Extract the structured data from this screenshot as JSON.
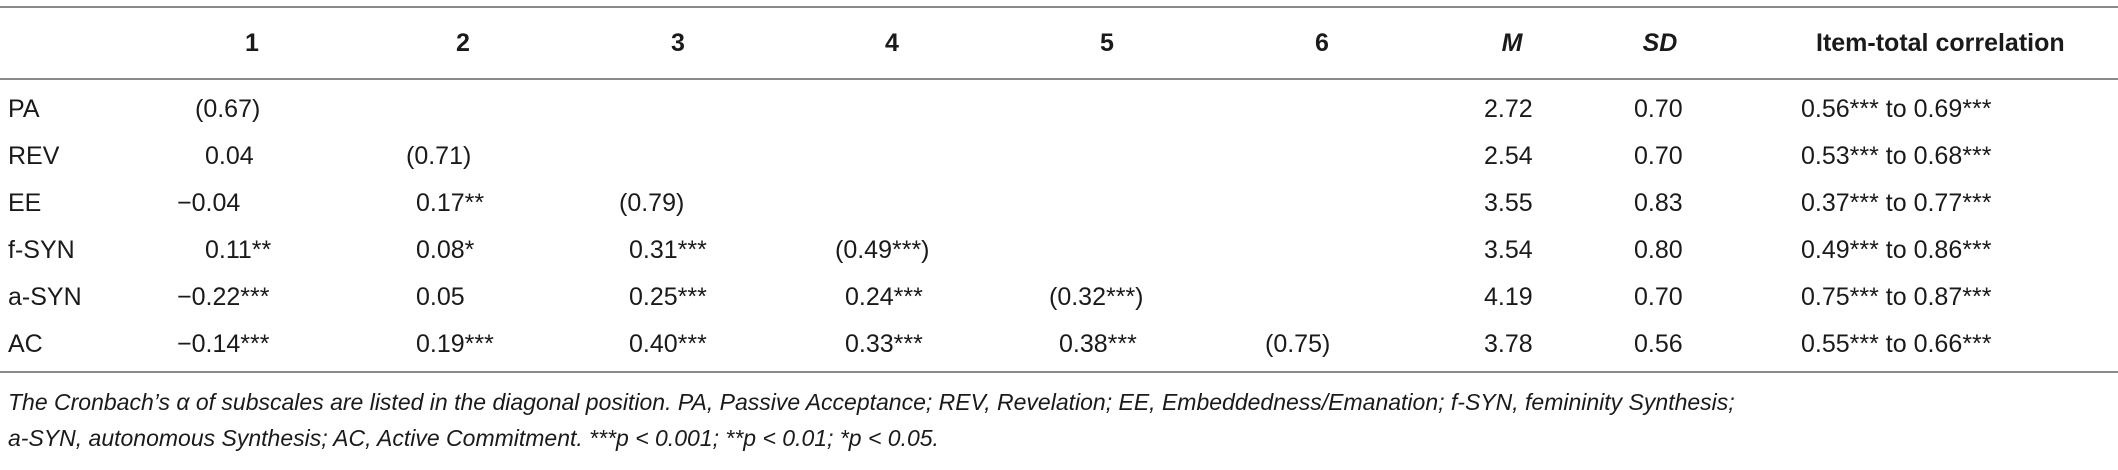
{
  "table": {
    "headers": {
      "label": "",
      "c1": "1",
      "c2": "2",
      "c3": "3",
      "c4": "4",
      "c5": "5",
      "c6": "6",
      "m": "M",
      "sd": "SD",
      "itc": "Item-total correlation"
    },
    "rows": [
      {
        "label": "PA",
        "c1": "(0.67)",
        "c2": "",
        "c3": "",
        "c4": "",
        "c5": "",
        "c6": "",
        "m": "2.72",
        "sd": "0.70",
        "itc": "0.56*** to 0.69***"
      },
      {
        "label": "REV",
        "c1": "0.04",
        "c2": "(0.71)",
        "c3": "",
        "c4": "",
        "c5": "",
        "c6": "",
        "m": "2.54",
        "sd": "0.70",
        "itc": "0.53*** to 0.68***"
      },
      {
        "label": "EE",
        "c1": "−0.04",
        "c2": "0.17**",
        "c3": "(0.79)",
        "c4": "",
        "c5": "",
        "c6": "",
        "m": "3.55",
        "sd": "0.83",
        "itc": "0.37*** to 0.77***"
      },
      {
        "label": "f-SYN",
        "c1": "0.11**",
        "c2": "0.08*",
        "c3": "0.31***",
        "c4": "(0.49***)",
        "c5": "",
        "c6": "",
        "m": "3.54",
        "sd": "0.80",
        "itc": "0.49*** to 0.86***"
      },
      {
        "label": "a-SYN",
        "c1": "−0.22***",
        "c2": "0.05",
        "c3": "0.25***",
        "c4": "0.24***",
        "c5": "(0.32***)",
        "c6": "",
        "m": "4.19",
        "sd": "0.70",
        "itc": "0.75*** to 0.87***"
      },
      {
        "label": "AC",
        "c1": "−0.14***",
        "c2": "0.19***",
        "c3": "0.40***",
        "c4": "0.33***",
        "c5": "0.38***",
        "c6": "(0.75)",
        "m": "3.78",
        "sd": "0.56",
        "itc": "0.55*** to 0.66***"
      }
    ]
  },
  "note": {
    "line1": "The Cronbach’s α of subscales are listed in the diagonal position. PA, Passive Acceptance; REV, Revelation; EE, Embeddedness/Emanation; f-SYN, femininity Synthesis;",
    "line2": "a-SYN, autonomous Synthesis; AC, Active Commitment. ***p < 0.001; **p < 0.01; *p < 0.05."
  },
  "colors": {
    "rule": "#8a8a8a",
    "text": "#1a1a1a"
  }
}
